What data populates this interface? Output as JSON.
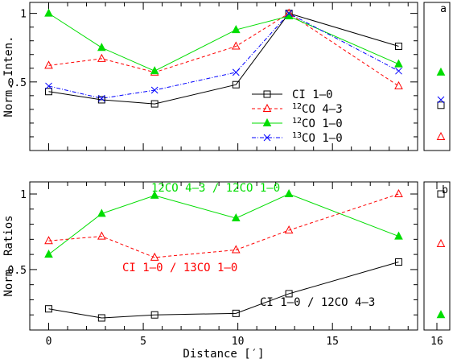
{
  "chart_data": [
    {
      "panel": "a",
      "type": "line",
      "ylabel": "Norm. Inten.",
      "xlim": [
        -1,
        19.5
      ],
      "ylim": [
        0,
        1.08
      ],
      "yticks": [
        0.5,
        1
      ],
      "ytick_labels": [
        "0.5",
        "1"
      ],
      "x": [
        0,
        2.8,
        5.6,
        9.9,
        12.7,
        18.5
      ],
      "series": [
        {
          "name": "CI 1–0",
          "name_parts": [
            "CI 1–0"
          ],
          "marker": "square",
          "color": "#000000",
          "dash": "solid",
          "values": [
            0.43,
            0.37,
            0.34,
            0.48,
            1.0,
            0.76
          ]
        },
        {
          "name": "12CO 4–3",
          "name_parts": [
            "12",
            "CO 4–3"
          ],
          "marker": "triangle",
          "color": "#ff0000",
          "dash": "dashed",
          "values": [
            0.62,
            0.67,
            0.57,
            0.76,
            1.0,
            0.47
          ]
        },
        {
          "name": "12CO 1–0",
          "name_parts": [
            "12",
            "CO 1–0"
          ],
          "marker": "filled-triangle",
          "color": "#00dd00",
          "dash": "solid",
          "values": [
            1.0,
            0.75,
            0.58,
            0.88,
            0.98,
            0.63
          ]
        },
        {
          "name": "13CO 1–0",
          "name_parts": [
            "13",
            "CO 1–0"
          ],
          "marker": "cross",
          "color": "#0000ff",
          "dash": "dashdot",
          "values": [
            0.47,
            0.38,
            0.44,
            0.57,
            1.0,
            0.58
          ]
        }
      ],
      "side_panel": {
        "label": "a",
        "x_tick_label": "16",
        "points": [
          {
            "series": "CI 1–0",
            "value": 0.33
          },
          {
            "series": "12CO 4–3",
            "value": 0.1
          },
          {
            "series": "12CO 1–0",
            "value": 0.57
          },
          {
            "series": "13CO 1–0",
            "value": 0.37
          }
        ]
      }
    },
    {
      "panel": "b",
      "type": "line",
      "xlabel": "Distance [′]",
      "ylabel": "Norm. Ratios",
      "xlim": [
        -1,
        19.5
      ],
      "ylim": [
        0.1,
        1.08
      ],
      "xticks": [
        0,
        5,
        10,
        15
      ],
      "xtick_labels": [
        "0",
        "5",
        "10",
        "15"
      ],
      "yticks": [
        0.5,
        1
      ],
      "ytick_labels": [
        "0.5",
        "1"
      ],
      "x": [
        0,
        2.8,
        5.6,
        9.9,
        12.7,
        18.5
      ],
      "series": [
        {
          "name": "12CO 4–3 / 12CO 1–0",
          "marker": "filled-triangle",
          "color": "#00dd00",
          "dash": "solid",
          "values": [
            0.6,
            0.87,
            0.99,
            0.84,
            1.0,
            0.72
          ]
        },
        {
          "name": "CI 1–0 / 13CO 1–0",
          "marker": "triangle",
          "color": "#ff0000",
          "dash": "dashed",
          "values": [
            0.69,
            0.72,
            0.58,
            0.63,
            0.76,
            1.0
          ]
        },
        {
          "name": "CI 1–0 / 12CO 4–3",
          "marker": "square",
          "color": "#000000",
          "dash": "solid",
          "values": [
            0.24,
            0.18,
            0.2,
            0.21,
            0.34,
            0.55
          ]
        }
      ],
      "side_panel": {
        "label": "b",
        "x_tick_label": "16",
        "points": [
          {
            "series": "CI 1–0 / 12CO 4–3",
            "value": 1.0
          },
          {
            "series": "CI 1–0 / 13CO 1–0",
            "value": 0.67
          },
          {
            "series": "12CO 4–3 / 12CO 1–0",
            "value": 0.2
          }
        ]
      }
    }
  ]
}
